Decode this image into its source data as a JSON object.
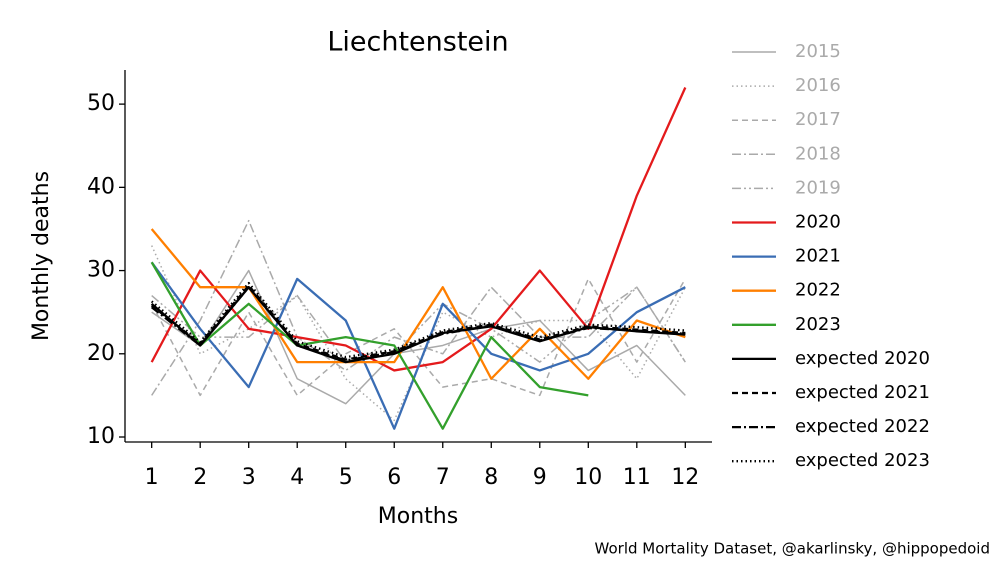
{
  "chart_data": {
    "type": "line",
    "title": "Liechtenstein",
    "xlabel": "Months",
    "ylabel": "Monthly deaths",
    "source": "World Mortality Dataset, @akarlinsky, @hippopedoid",
    "x": [
      1,
      2,
      3,
      4,
      5,
      6,
      7,
      8,
      9,
      10,
      11,
      12
    ],
    "xlim": [
      0.45,
      12.55
    ],
    "xticks": [
      1,
      2,
      3,
      4,
      5,
      6,
      7,
      8,
      9,
      10,
      11,
      12
    ],
    "ylim": [
      9.4,
      54.1
    ],
    "yticks": [
      10,
      20,
      30,
      40,
      50
    ],
    "legend": "outside right",
    "series": [
      {
        "name": "2015",
        "color": "#aaaaaa",
        "linestyle": "solid",
        "values": [
          25,
          21,
          30,
          17,
          14,
          20,
          21,
          23,
          24,
          18,
          21,
          15
        ]
      },
      {
        "name": "2016",
        "color": "#aaaaaa",
        "linestyle": "dotted",
        "values": [
          33,
          20,
          23,
          27,
          17,
          12,
          25,
          22,
          24,
          24,
          17,
          28
        ]
      },
      {
        "name": "2017",
        "color": "#aaaaaa",
        "linestyle": "dashed",
        "values": [
          26,
          15,
          25,
          15,
          20,
          23,
          16,
          17,
          15,
          29,
          19,
          29
        ]
      },
      {
        "name": "2018",
        "color": "#aaaaaa",
        "linestyle": "dashdot",
        "values": [
          15,
          24,
          36,
          22,
          18,
          22,
          20,
          28,
          22,
          22,
          28,
          19
        ]
      },
      {
        "name": "2019",
        "color": "#aaaaaa",
        "linestyle": "dashdotdot",
        "values": [
          27,
          22,
          22,
          27,
          19,
          20,
          26,
          23,
          19,
          24,
          28,
          19
        ]
      },
      {
        "name": "2020",
        "color": "#e41a1c",
        "linestyle": "solid",
        "values": [
          19,
          30,
          23,
          22,
          21,
          18,
          19,
          23,
          30,
          23,
          39,
          52
        ]
      },
      {
        "name": "2021",
        "color": "#3a6db4",
        "linestyle": "solid",
        "values": [
          31,
          23,
          16,
          29,
          24,
          11,
          26,
          20,
          18,
          20,
          25,
          28
        ]
      },
      {
        "name": "2022",
        "color": "#ff7f00",
        "linestyle": "solid",
        "values": [
          35,
          28,
          28,
          19,
          19,
          19,
          28,
          17,
          23,
          17,
          24,
          22
        ]
      },
      {
        "name": "2023",
        "color": "#33a02c",
        "linestyle": "solid",
        "values": [
          31,
          21,
          26,
          21,
          22,
          21,
          11,
          22,
          16,
          15,
          null,
          null
        ]
      },
      {
        "name": "expected 2020",
        "color": "#000000",
        "linestyle": "solid",
        "values": [
          26,
          21,
          28,
          21,
          19,
          20,
          22.5,
          23.3,
          21.5,
          23.2,
          22.7,
          22.3
        ]
      },
      {
        "name": "expected 2021",
        "color": "#000000",
        "linestyle": "dashed",
        "values": [
          25.8,
          21.2,
          28.2,
          21.2,
          19.3,
          20.3,
          22.6,
          23.5,
          21.7,
          23.3,
          22.9,
          22.5
        ]
      },
      {
        "name": "expected 2022",
        "color": "#000000",
        "linestyle": "dashdot",
        "values": [
          25.6,
          21,
          28,
          21,
          19.2,
          20.2,
          22.4,
          23.4,
          21.6,
          23.1,
          22.8,
          22.4
        ]
      },
      {
        "name": "expected 2023",
        "color": "#000000",
        "linestyle": "dotted",
        "values": [
          26.3,
          21.4,
          28.5,
          21.5,
          19.6,
          20.5,
          22.8,
          23.7,
          22,
          23.5,
          23.2,
          22.8
        ]
      }
    ]
  }
}
